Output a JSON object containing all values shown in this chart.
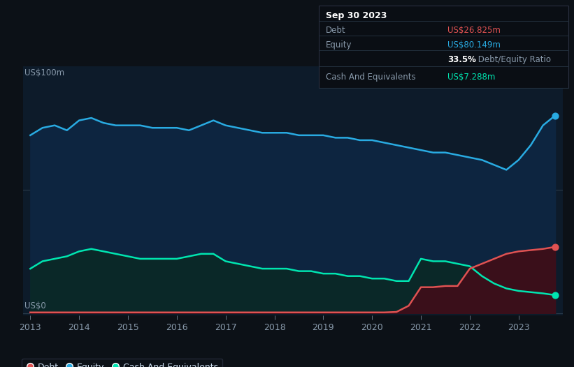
{
  "bg_color": "#0c1117",
  "plot_bg_color": "#0d1b2a",
  "title_box": {
    "date": "Sep 30 2023",
    "debt_label": "Debt",
    "debt_value": "US$26.825m",
    "equity_label": "Equity",
    "equity_value": "US$80.149m",
    "ratio_bold": "33.5%",
    "ratio_rest": " Debt/Equity Ratio",
    "cash_label": "Cash And Equivalents",
    "cash_value": "US$7.288m"
  },
  "ylabel_top": "US$100m",
  "ylabel_bot": "US$0",
  "equity_color": "#29abe2",
  "debt_color": "#e05252",
  "cash_color": "#00e5b0",
  "equity_fill": "#0d2540",
  "debt_fill": "#3a0f1a",
  "cash_fill": "#0a2828",
  "gridline_color": "#2a3a4a",
  "tick_color": "#8899aa",
  "legend_items": [
    {
      "label": "Debt",
      "color": "#e05252"
    },
    {
      "label": "Equity",
      "color": "#29abe2"
    },
    {
      "label": "Cash And Equivalents",
      "color": "#00e5b0"
    }
  ],
  "years": [
    2013.0,
    2013.25,
    2013.5,
    2013.75,
    2014.0,
    2014.25,
    2014.5,
    2014.75,
    2015.0,
    2015.25,
    2015.5,
    2015.75,
    2016.0,
    2016.25,
    2016.5,
    2016.75,
    2017.0,
    2017.25,
    2017.5,
    2017.75,
    2018.0,
    2018.25,
    2018.5,
    2018.75,
    2019.0,
    2019.25,
    2019.5,
    2019.75,
    2020.0,
    2020.25,
    2020.5,
    2020.75,
    2021.0,
    2021.25,
    2021.5,
    2021.75,
    2022.0,
    2022.25,
    2022.5,
    2022.75,
    2023.0,
    2023.25,
    2023.5,
    2023.75
  ],
  "equity": [
    72,
    75,
    76,
    74,
    78,
    79,
    77,
    76,
    76,
    76,
    75,
    75,
    75,
    74,
    76,
    78,
    76,
    75,
    74,
    73,
    73,
    73,
    72,
    72,
    72,
    71,
    71,
    70,
    70,
    69,
    68,
    67,
    66,
    65,
    65,
    64,
    63,
    62,
    60,
    58,
    62,
    68,
    76,
    80
  ],
  "debt": [
    0.3,
    0.3,
    0.3,
    0.3,
    0.3,
    0.3,
    0.3,
    0.3,
    0.3,
    0.3,
    0.3,
    0.3,
    0.3,
    0.3,
    0.3,
    0.3,
    0.3,
    0.3,
    0.3,
    0.3,
    0.3,
    0.3,
    0.3,
    0.3,
    0.3,
    0.3,
    0.3,
    0.3,
    0.3,
    0.3,
    0.5,
    3.0,
    10.5,
    10.5,
    11.0,
    11.0,
    18.0,
    20.0,
    22.0,
    24.0,
    25.0,
    25.5,
    26.0,
    26.825
  ],
  "cash": [
    18,
    21,
    22,
    23,
    25,
    26,
    25,
    24,
    23,
    22,
    22,
    22,
    22,
    23,
    24,
    24,
    21,
    20,
    19,
    18,
    18,
    18,
    17,
    17,
    16,
    16,
    15,
    15,
    14,
    14,
    13,
    13,
    22,
    21,
    21,
    20,
    19,
    15,
    12,
    10,
    9,
    8.5,
    8,
    7.288
  ]
}
